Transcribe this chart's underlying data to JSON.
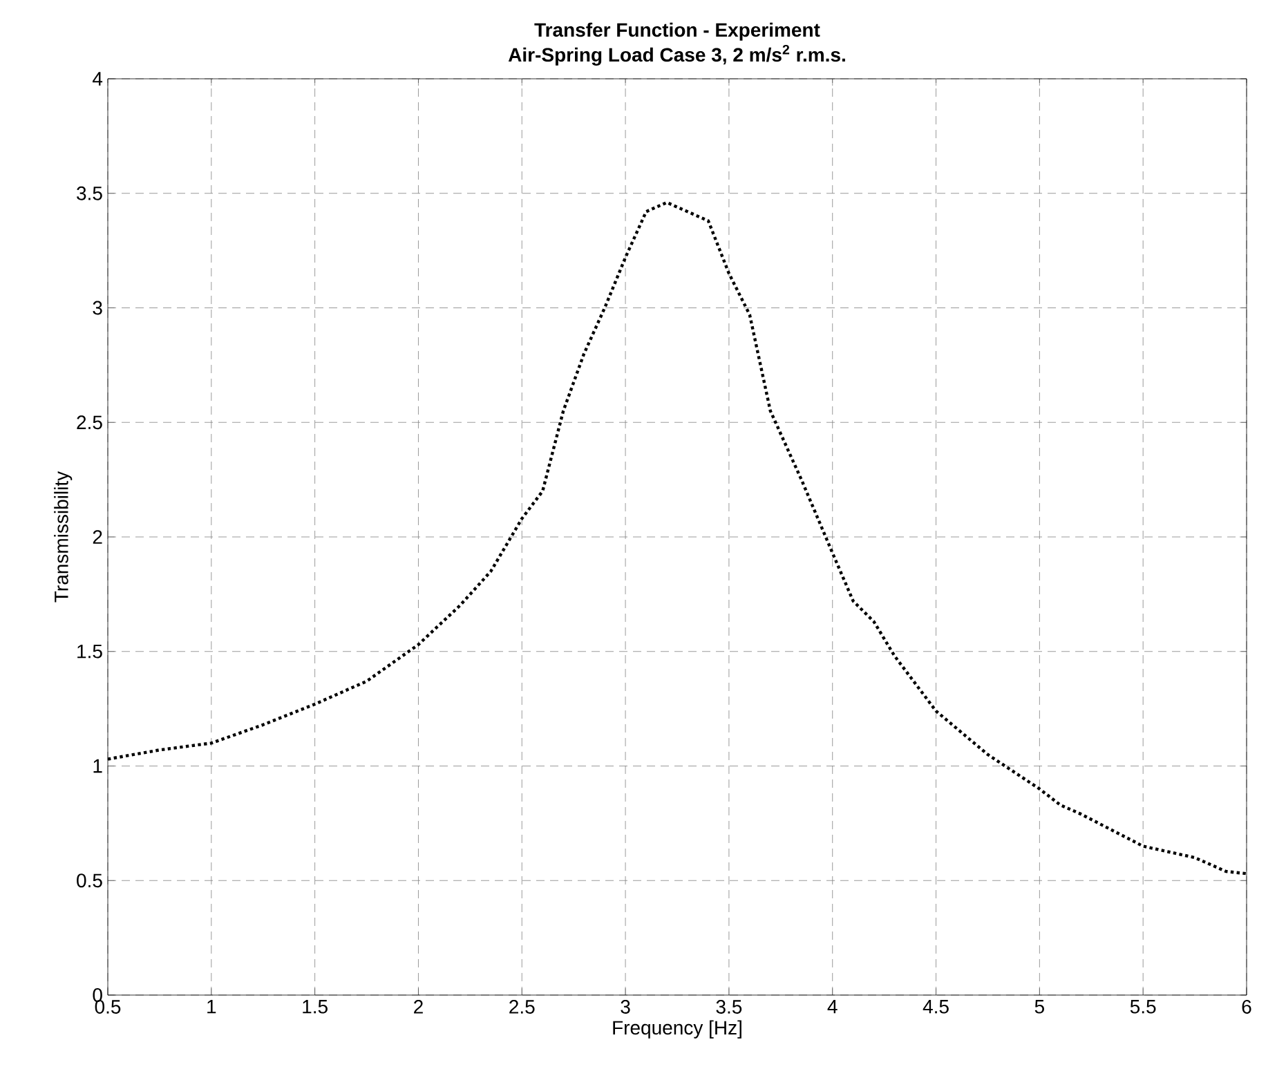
{
  "chart_data": {
    "type": "line",
    "title": "Transfer Function  -  Experiment",
    "subtitle": "Air-Spring Load Case 3, 2 m/s$^{2}$ r.m.s.",
    "xlabel": "Frequency  [Hz]",
    "ylabel": "Transmissibility",
    "x": [
      0.5,
      0.75,
      1.0,
      1.25,
      1.5,
      1.75,
      2.0,
      2.2,
      2.35,
      2.5,
      2.6,
      2.7,
      2.8,
      2.9,
      3.0,
      3.1,
      3.2,
      3.3,
      3.4,
      3.5,
      3.6,
      3.7,
      3.85,
      4.0,
      4.1,
      4.2,
      4.3,
      4.5,
      4.75,
      5.0,
      5.1,
      5.2,
      5.5,
      5.75,
      5.9,
      6.0
    ],
    "series": [
      {
        "color": "#000000",
        "values": [
          1.03,
          1.07,
          1.1,
          1.18,
          1.27,
          1.37,
          1.53,
          1.7,
          1.85,
          2.08,
          2.2,
          2.55,
          2.8,
          3.0,
          3.22,
          3.42,
          3.46,
          3.42,
          3.38,
          3.15,
          2.97,
          2.55,
          2.25,
          1.93,
          1.72,
          1.63,
          1.48,
          1.24,
          1.05,
          0.9,
          0.83,
          0.79,
          0.65,
          0.6,
          0.54,
          0.53
        ]
      }
    ],
    "xlim": [
      0.5,
      6
    ],
    "ylim": [
      0,
      4
    ],
    "xticks": [
      0.5,
      1,
      1.5,
      2,
      2.5,
      3,
      3.5,
      4,
      4.5,
      5,
      5.5,
      6
    ],
    "yticks": [
      0,
      0.5,
      1,
      1.5,
      2,
      2.5,
      3,
      3.5,
      4
    ],
    "grid": true,
    "line_style": "dotted",
    "marker": "none"
  }
}
